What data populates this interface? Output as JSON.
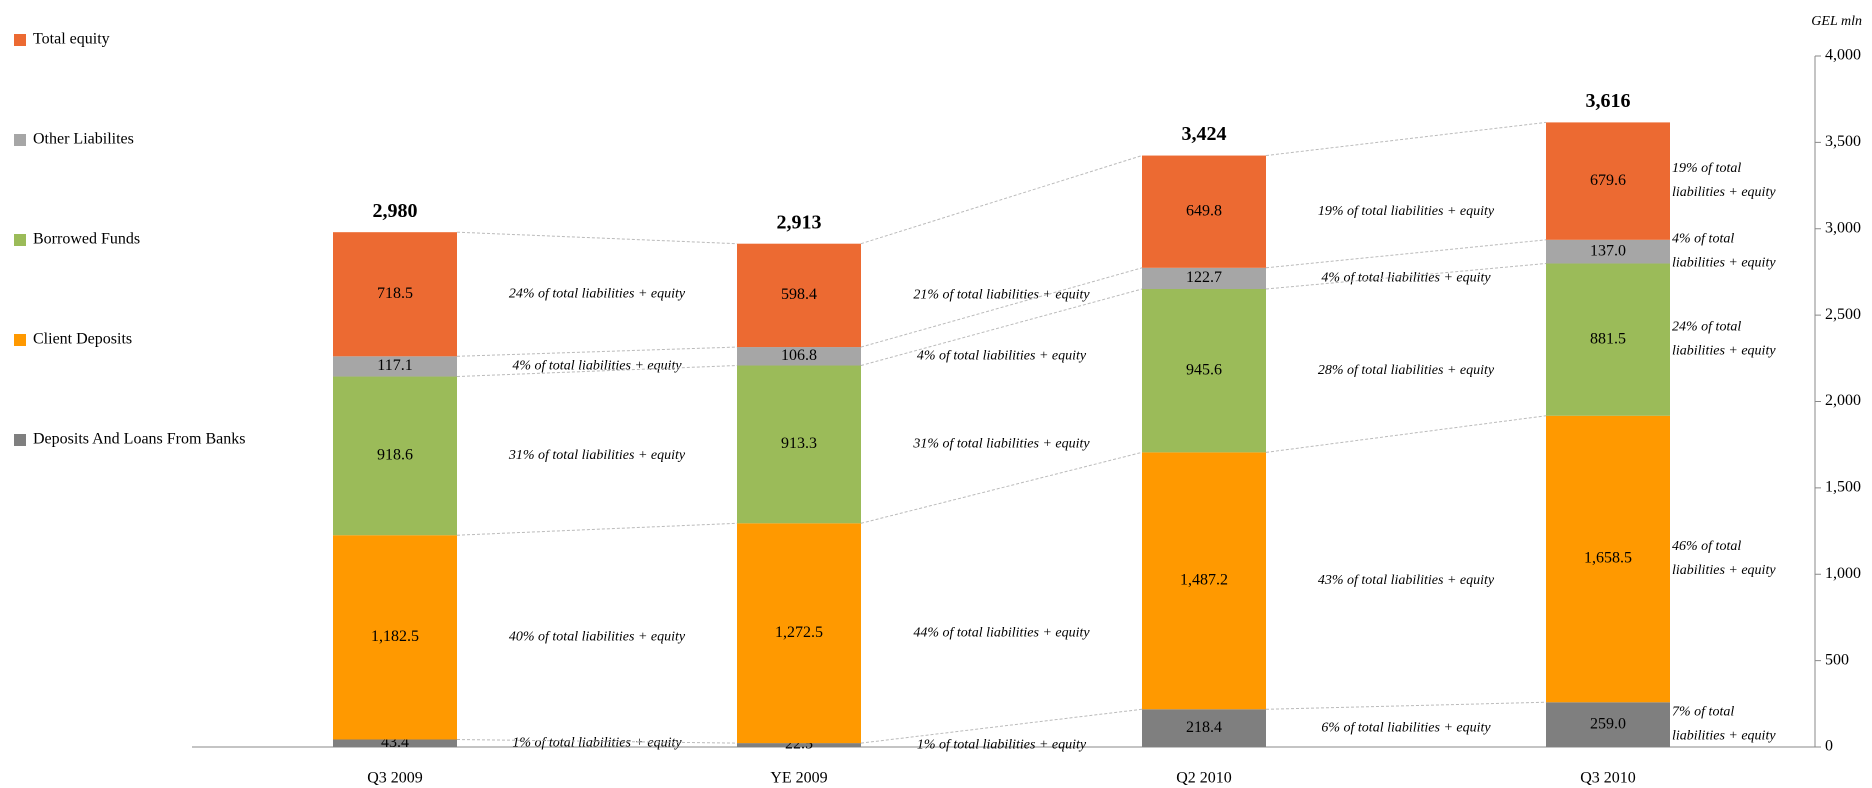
{
  "chart_data": {
    "type": "stacked_bar",
    "y_unit": "GEL mln",
    "categories": [
      "Q3 2009",
      "YE 2009",
      "Q2 2010",
      "Q3 2010"
    ],
    "ylim": [
      0,
      4000
    ],
    "yticks": [
      0,
      500,
      {
        "value": 1000,
        "label": "1,000"
      },
      {
        "value": 1500,
        "label": "1,500"
      },
      {
        "value": 2000,
        "label": "2,000"
      },
      {
        "value": 2500,
        "label": "2,500"
      },
      {
        "value": 3000,
        "label": "3,000"
      },
      {
        "value": 3500,
        "label": "3,500"
      },
      {
        "value": 4000,
        "label": "4,000"
      }
    ],
    "totals": [
      {
        "value": 2980,
        "label": "2,980"
      },
      {
        "value": 2913,
        "label": "2,913"
      },
      {
        "value": 3424,
        "label": "3,424"
      },
      {
        "value": 3616,
        "label": "3,616"
      }
    ],
    "series": [
      {
        "name": "Deposits And Loans From Banks",
        "color": "#7f7f7f",
        "values": [
          43.4,
          22.5,
          218.4,
          259.0
        ],
        "value_labels": [
          "43.4",
          "22.5",
          "218.4",
          "259.0"
        ],
        "annotations": [
          "1% of total liabilities + equity",
          "1% of total liabilities + equity",
          "6% of total liabilities + equity",
          "7% of total liabilities + equity"
        ]
      },
      {
        "name": "Client Deposits",
        "color": "#ff9900",
        "values": [
          1182.5,
          1272.5,
          1487.2,
          1658.5
        ],
        "value_labels": [
          "1,182.5",
          "1,272.5",
          "1,487.2",
          "1,658.5"
        ],
        "annotations": [
          "40% of total liabilities + equity",
          "44% of total liabilities + equity",
          "43% of total liabilities + equity",
          "46% of total liabilities + equity"
        ]
      },
      {
        "name": "Borrowed Funds",
        "color": "#9bbb59",
        "values": [
          918.6,
          913.3,
          945.6,
          881.5
        ],
        "value_labels": [
          "918.6",
          "913.3",
          "945.6",
          "881.5"
        ],
        "annotations": [
          "31% of total liabilities + equity",
          "31% of total liabilities + equity",
          "28% of total liabilities + equity",
          "24% of total liabilities + equity"
        ]
      },
      {
        "name": "Other Liabilites",
        "color": "#a6a6a6",
        "values": [
          117.1,
          106.8,
          122.7,
          137.0
        ],
        "value_labels": [
          "117.1",
          "106.8",
          "122.7",
          "137.0"
        ],
        "annotations": [
          "4% of total liabilities + equity",
          "4% of total liabilities + equity",
          "4% of total liabilities + equity",
          "4% of total liabilities + equity"
        ]
      },
      {
        "name": "Total equity",
        "color": "#ec6a32",
        "values": [
          718.5,
          598.4,
          649.8,
          679.6
        ],
        "value_labels": [
          "718.5",
          "598.4",
          "649.8",
          "679.6"
        ],
        "annotations": [
          "24% of total liabilities + equity",
          "21% of total liabilities + equity",
          "19% of total liabilities + equity",
          "19% of total liabilities + equity"
        ]
      }
    ]
  }
}
